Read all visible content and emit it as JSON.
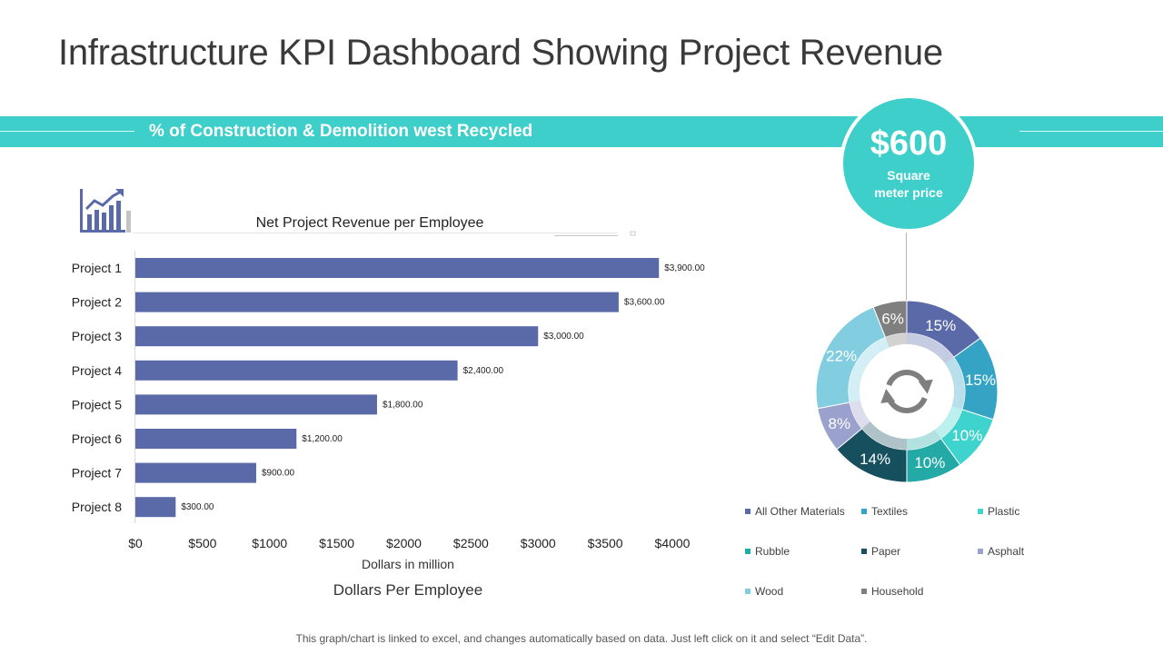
{
  "page": {
    "title": "Infrastructure KPI Dashboard Showing Project Revenue",
    "banner_text": "% of Construction & Demolition west Recycled",
    "price_value": "$600",
    "price_label_line1": "Square",
    "price_label_line2": "meter price",
    "footer": "This graph/chart is linked to excel, and changes automatically based on data. Just left click on it and select “Edit Data”.",
    "accent_color": "#3ecfcb",
    "bar_color": "#5a6aa8"
  },
  "chart_data": [
    {
      "type": "bar",
      "orientation": "horizontal",
      "title": "Net Project Revenue per Employee",
      "xlabel": "Dollars in million",
      "subtitle": "Dollars Per Employee",
      "categories": [
        "Project 1",
        "Project 2",
        "Project 3",
        "Project 4",
        "Project 5",
        "Project 6",
        "Project 7",
        "Project 8"
      ],
      "values": [
        3900,
        3600,
        3000,
        2400,
        1800,
        1200,
        900,
        300
      ],
      "value_labels": [
        "$3,900.00",
        "$3,600.00",
        "$3,000.00",
        "$2,400.00",
        "$1,800.00",
        "$1,200.00",
        "$900.00",
        "$300.00"
      ],
      "xticks": [
        0,
        500,
        1000,
        1500,
        2000,
        2500,
        3000,
        3500,
        4000
      ],
      "xtick_labels": [
        "$0",
        "$500",
        "$1000",
        "$1500",
        "$2000",
        "$2500",
        "$3000",
        "$3500",
        "$4000"
      ],
      "xlim": [
        0,
        4000
      ],
      "grid": false
    },
    {
      "type": "pie",
      "variant": "donut",
      "center_icon": "refresh-icon",
      "slices": [
        {
          "label": "All Other Materials",
          "value": 15,
          "text": "15%",
          "color": "#5a6aa8"
        },
        {
          "label": "Textiles",
          "value": 15,
          "text": "15%",
          "color": "#35a4c4"
        },
        {
          "label": "Plastic",
          "value": 10,
          "text": "10%",
          "color": "#3ed3cd"
        },
        {
          "label": "Rubble",
          "value": 10,
          "text": "10%",
          "color": "#23aaa6"
        },
        {
          "label": "Paper",
          "value": 14,
          "text": "14%",
          "color": "#16505f"
        },
        {
          "label": "Asphalt",
          "value": 8,
          "text": "8%",
          "color": "#9aa1cc"
        },
        {
          "label": "Wood",
          "value": 22,
          "text": "22%",
          "color": "#82cde0"
        },
        {
          "label": "Household",
          "value": 6,
          "text": "6%",
          "color": "#7f7f7f"
        }
      ],
      "legend_position": "bottom"
    }
  ]
}
